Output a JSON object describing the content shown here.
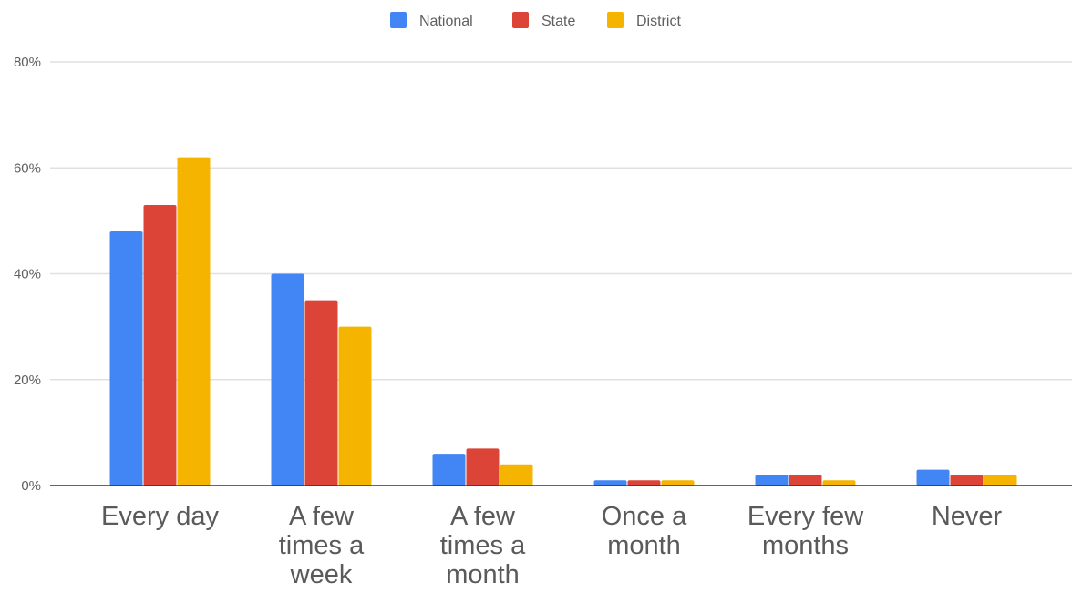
{
  "chart_data": {
    "type": "bar",
    "categories": [
      [
        "Every day"
      ],
      [
        "A few",
        "times a",
        "week"
      ],
      [
        "A few",
        "times a",
        "month"
      ],
      [
        "Once a",
        "month"
      ],
      [
        "Every few",
        "months"
      ],
      [
        "Never"
      ]
    ],
    "series": [
      {
        "name": "National",
        "color": "#4285F4",
        "values": [
          48,
          40,
          6,
          1,
          2,
          3
        ]
      },
      {
        "name": "State",
        "color": "#DB4437",
        "values": [
          53,
          35,
          7,
          1,
          2,
          2
        ]
      },
      {
        "name": "District",
        "color": "#F4B400",
        "values": [
          62,
          30,
          4,
          1,
          1,
          2
        ]
      }
    ],
    "yticks": [
      "0%",
      "20%",
      "40%",
      "60%",
      "80%"
    ],
    "ylim": [
      0,
      80
    ],
    "grid": true,
    "legend_position": "top-center"
  }
}
